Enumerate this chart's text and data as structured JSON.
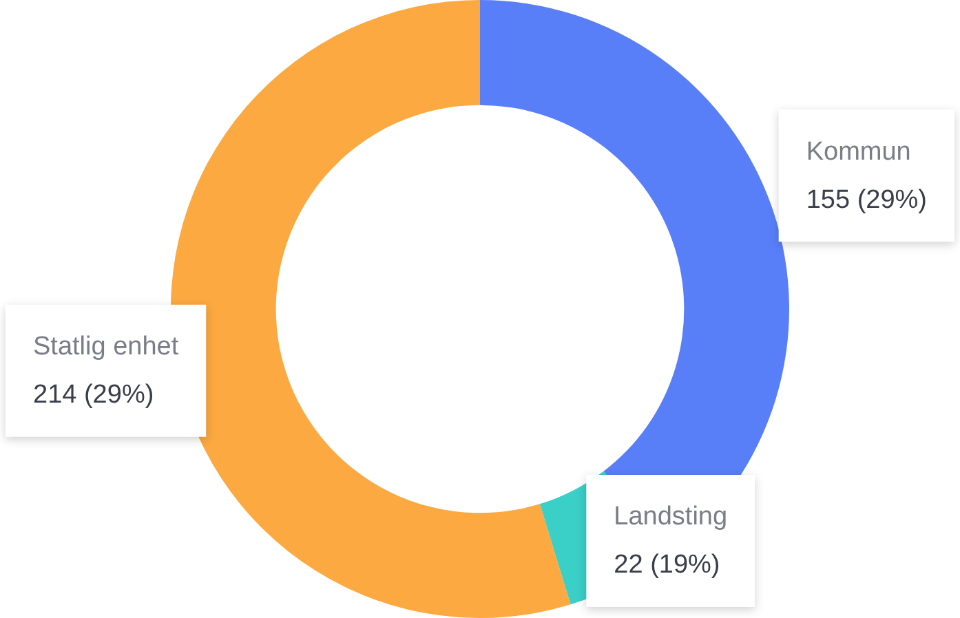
{
  "chart_data": {
    "type": "donut",
    "categories": [
      "Kommun",
      "Landsting",
      "Statlig enhet"
    ],
    "values": [
      155,
      22,
      214
    ],
    "colors": [
      "#587ff8",
      "#3acfc7",
      "#fba940"
    ],
    "value_labels": [
      "155 (29%)",
      "22 (19%)",
      "214 (29%)"
    ],
    "legend": false
  }
}
